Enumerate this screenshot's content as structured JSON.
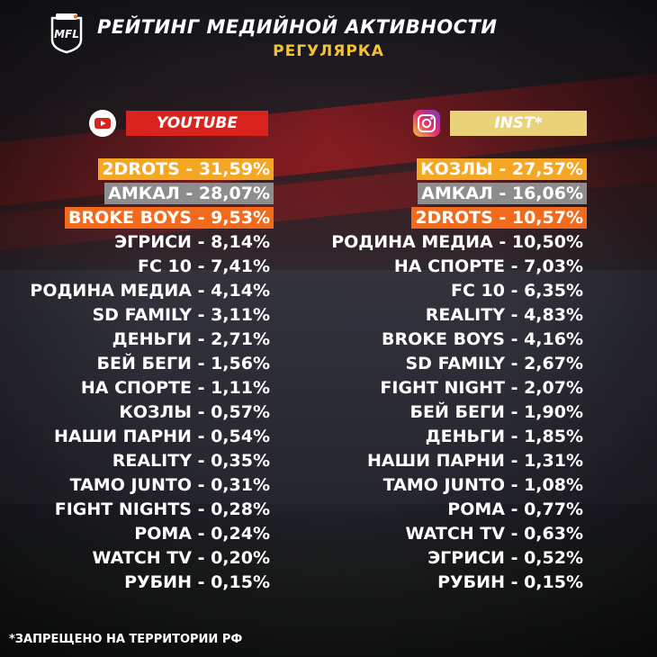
{
  "header": {
    "logo_text": "MFL",
    "title": "РЕЙТИНГ МЕДИЙНОЙ АКТИВНОСТИ",
    "subtitle": "РЕГУЛЯРКА"
  },
  "youtube": {
    "icon": "youtube-icon",
    "label": "YOUTUBE",
    "color": "#d9231f",
    "items": [
      "2DROTS - 31,59%",
      "АМКАЛ - 28,07%",
      "BROKE BOYS - 9,53%",
      "ЭГРИСИ - 8,14%",
      "FC 10 - 7,41%",
      "РОДИНА МЕДИА - 4,14%",
      "SD FAMILY - 3,11%",
      "ДЕНЬГИ - 2,71%",
      "БЕЙ БЕГИ - 1,56%",
      "НА СПОРТЕ - 1,11%",
      "КОЗЛЫ - 0,57%",
      "НАШИ ПАРНИ - 0,54%",
      "REALITY - 0,35%",
      "TAMO JUNTO - 0,31%",
      "FIGHT NIGHTS - 0,28%",
      "РОМА - 0,24%",
      "WATCH TV - 0,20%",
      "РУБИН - 0,15%"
    ]
  },
  "instagram": {
    "icon": "instagram-icon",
    "label": "INST*",
    "color": "#ead27a",
    "items": [
      "КОЗЛЫ - 27,57%",
      "АМКАЛ - 16,06%",
      "2DROTS - 10,57%",
      "РОДИНА МЕДИА - 10,50%",
      "НА СПОРТЕ - 7,03%",
      "FC 10 - 6,35%",
      "REALITY - 4,83%",
      "BROKE BOYS - 4,16%",
      "SD FAMILY - 2,67%",
      "FIGHT NIGHT - 2,07%",
      "БЕЙ БЕГИ - 1,90%",
      "ДЕНЬГИ - 1,85%",
      "НАШИ ПАРНИ - 1,31%",
      "TAMO JUNTO - 1,08%",
      "РОМА - 0,77%",
      "WATCH TV - 0,63%",
      "ЭГРИСИ - 0,52%",
      "РУБИН - 0,15%"
    ]
  },
  "highlight_colors": [
    "#f5a623",
    "#8d8d8d",
    "#f26b1d"
  ],
  "footnote": "*ЗАПРЕЩЕНО НА ТЕРРИТОРИИ РФ"
}
